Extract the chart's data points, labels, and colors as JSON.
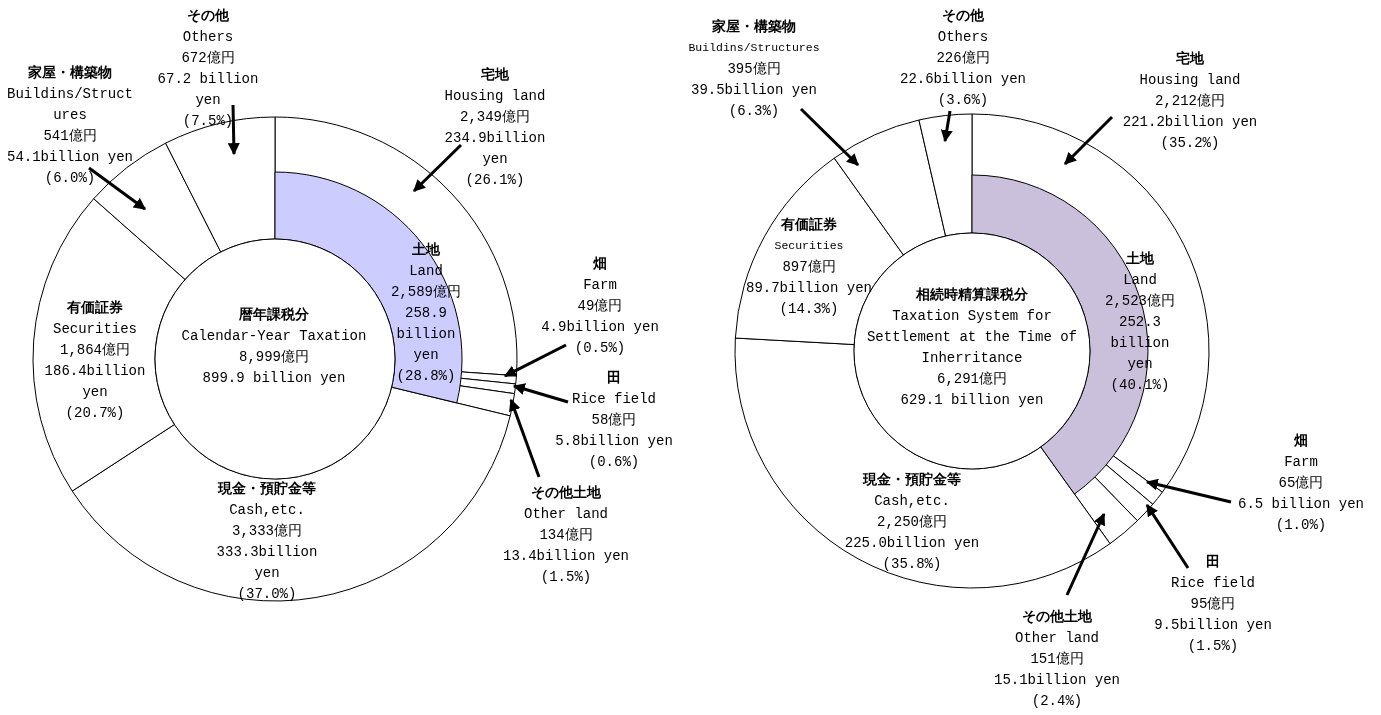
{
  "chart_data": [
    {
      "type": "donut",
      "title": "暦年課税分\nCalendar-Year Taxation\n8,999億円\n899.9 billion yen",
      "categories": [
        "宅地\nHousing land",
        "畑\nFarm",
        "田\nRice field",
        "その他土地\nOther land",
        "現金・預貯金等\nCash,etc.",
        "有価証券\nSecurities",
        "家屋・構築物\nBuildins/Struct\nures",
        "その他\nOthers"
      ],
      "series": [
        {
          "values": [
            2349,
            49,
            58,
            134,
            3333,
            1864,
            541,
            672
          ],
          "colors": [
            "#ffffff",
            "#ffffff",
            "#ffffff",
            "#ffffff",
            "#ffffff",
            "#ffffff",
            "#ffffff",
            "#ffffff"
          ],
          "value_labels": [
            "2,349億円\n234.9billion\nyen\n(26.1%)",
            "49億円\n4.9billion yen\n(0.5%)",
            "58億円\n5.8billion yen\n(0.6%)",
            "134億円\n13.4billion yen\n(1.5%)",
            "3,333億円\n333.3billion\nyen\n(37.0%)",
            "1,864億円\n186.4billion\nyen\n(20.7%)",
            "541億円\n54.1billion yen\n(6.0%)",
            "672億円\n67.2 billion\nyen\n(7.5%)"
          ]
        },
        {
          "name": "土地\nLand",
          "values": [
            2589,
            null,
            null,
            null,
            null,
            null,
            null,
            null
          ],
          "color": "#ccccff",
          "value_labels": [
            "2,589億円\n258.9\nbillion\nyen\n(28.8%)",
            null,
            null,
            null,
            null,
            null,
            null,
            null
          ]
        }
      ]
    },
    {
      "type": "donut",
      "title": "相続時精算課税分\nTaxation System for\nSettlement at the Time of\nInherritance\n6,291億円\n629.1 billion yen",
      "categories": [
        "宅地\nHousing land",
        "畑\nFarm",
        "田\nRice field",
        "その他土地\nOther land",
        "現金・預貯金等\nCash,etc.",
        "有価証券\nSecurities",
        "家屋・構築物\nBuildins/Structures",
        "その他\nOthers"
      ],
      "series": [
        {
          "values": [
            2212,
            65,
            95,
            151,
            2250,
            897,
            395,
            226
          ],
          "colors": [
            "#ffffff",
            "#ffffff",
            "#ffffff",
            "#ffffff",
            "#ffffff",
            "#ffffff",
            "#ffffff",
            "#ffffff"
          ],
          "value_labels": [
            "2,212億円\n221.2billion yen\n(35.2%)",
            "65億円\n6.5 billion yen\n(1.0%)",
            "95億円\n9.5billion yen\n(1.5%)",
            "151億円\n15.1billion yen\n(2.4%)",
            "2,250億円\n225.0billion yen\n(35.8%)",
            "897億円\n89.7billion yen\n(14.3%)",
            "395億円\n39.5billion yen\n(6.3%)",
            "226億円\n22.6billion yen\n(3.6%)"
          ]
        },
        {
          "name": "土地\nLand",
          "values": [
            2523,
            null,
            null,
            null,
            null,
            null,
            null,
            null
          ],
          "color": "#cbc0dc",
          "value_labels": [
            "2,523億円\n252.3\nbillion\nyen\n(40.1%)",
            null,
            null,
            null,
            null,
            null,
            null,
            null
          ]
        }
      ]
    }
  ]
}
